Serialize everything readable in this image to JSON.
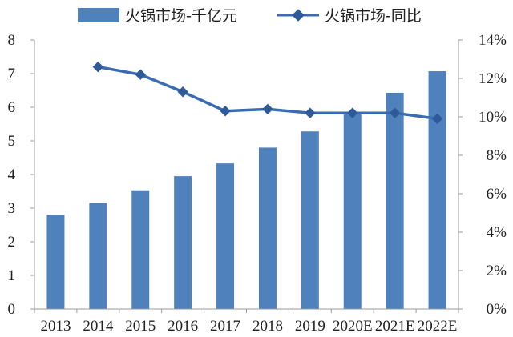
{
  "chart_data": {
    "type": "bar",
    "categories": [
      "2013",
      "2014",
      "2015",
      "2016",
      "2017",
      "2018",
      "2019",
      "2020E",
      "2021E",
      "2022E"
    ],
    "series": [
      {
        "name": "火锅市场-千亿元",
        "type": "bar",
        "axis": "left",
        "values": [
          2.8,
          3.15,
          3.53,
          3.95,
          4.33,
          4.8,
          5.28,
          5.82,
          6.43,
          7.07
        ]
      },
      {
        "name": "火锅市场-同比",
        "type": "line",
        "axis": "right",
        "values": [
          null,
          0.126,
          0.122,
          0.113,
          0.103,
          0.104,
          0.102,
          0.102,
          0.102,
          0.099
        ]
      }
    ],
    "left_axis": {
      "ylim": [
        0,
        8
      ],
      "ticks": [
        "0",
        "1",
        "2",
        "3",
        "4",
        "5",
        "6",
        "7",
        "8"
      ]
    },
    "right_axis": {
      "ylim": [
        0,
        0.14
      ],
      "ticks": [
        "0%",
        "2%",
        "4%",
        "6%",
        "8%",
        "10%",
        "12%",
        "14%"
      ]
    },
    "grid": false,
    "legend_position": "top",
    "colors": {
      "bar": "#4f81bd",
      "line": "#3a6bb3",
      "marker": "#2e5a99",
      "axis": "#9a9a9a"
    }
  }
}
